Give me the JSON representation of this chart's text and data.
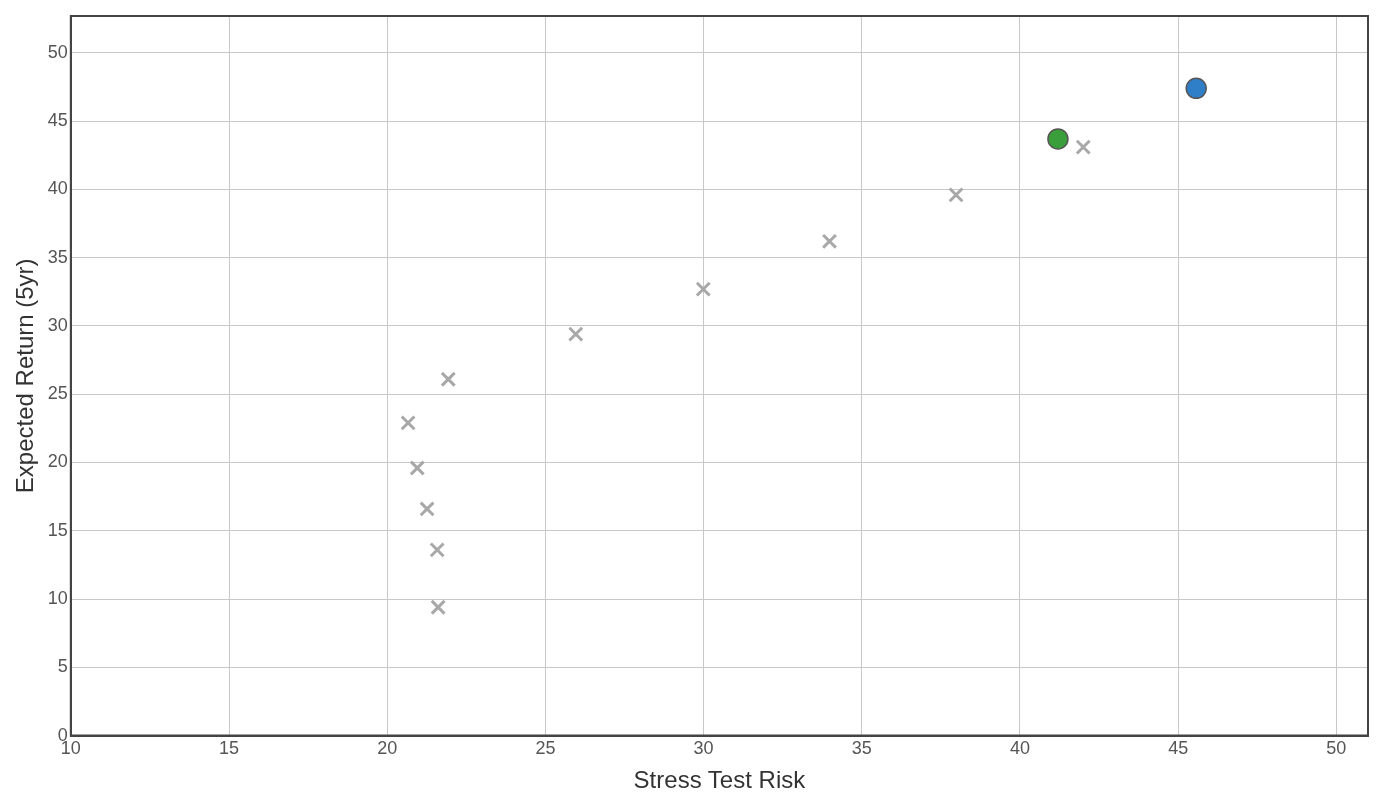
{
  "chart_data": {
    "type": "scatter",
    "xlabel": "Stress Test Risk",
    "ylabel": "Expected Return (5yr)",
    "xlim": [
      10,
      51
    ],
    "ylim": [
      0,
      52.7
    ],
    "xticks": [
      10,
      15,
      20,
      25,
      30,
      35,
      40,
      45,
      50
    ],
    "yticks": [
      0,
      5,
      10,
      15,
      20,
      25,
      30,
      35,
      40,
      45,
      50
    ],
    "grid": true,
    "legend": false,
    "series": [
      {
        "color": "#a8a8a8",
        "marker": "cross",
        "x": [
          20.66,
          20.95,
          21.26,
          21.58,
          21.61,
          21.93,
          25.96,
          29.99,
          33.98,
          37.98,
          42.0
        ],
        "values": [
          22.9,
          19.6,
          16.6,
          13.6,
          9.4,
          26.1,
          29.4,
          32.7,
          36.2,
          39.6,
          43.1
        ]
      },
      {
        "color": "#3a9e3a",
        "marker": "circle",
        "x": [
          41.2
        ],
        "values": [
          43.7
        ]
      },
      {
        "color": "#2f7fc8",
        "marker": "circle",
        "x": [
          45.57
        ],
        "values": [
          47.4
        ]
      }
    ]
  }
}
